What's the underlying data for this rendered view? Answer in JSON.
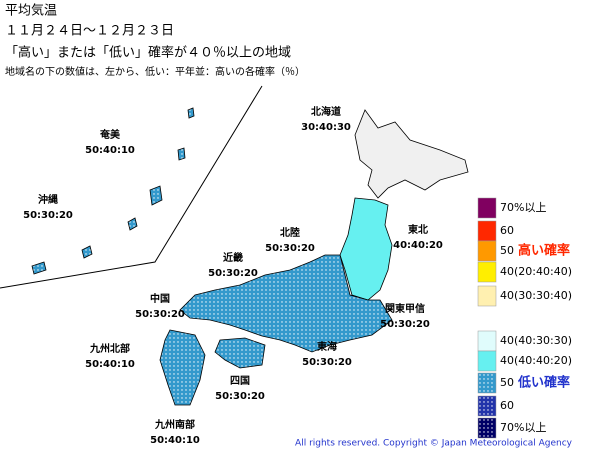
{
  "header": {
    "title": "平均気温",
    "period": "１１月２４日～１２月２３日",
    "subtitle": "「高い」または「低い」確率が４０％以上の地域",
    "note": "地域名の下の数値は、左から、低い：平年並：高いの各確率（％）"
  },
  "regions": [
    {
      "name": "北海道",
      "values": "30:40:30"
    },
    {
      "name": "東北",
      "values": "40:40:20"
    },
    {
      "name": "北陸",
      "values": "50:30:20"
    },
    {
      "name": "近畿",
      "values": "50:30:20"
    },
    {
      "name": "関東甲信",
      "values": "50:30:20"
    },
    {
      "name": "中国",
      "values": "50:30:20"
    },
    {
      "name": "東海",
      "values": "50:30:20"
    },
    {
      "name": "九州北部",
      "values": "50:40:10"
    },
    {
      "name": "四国",
      "values": "50:30:20"
    },
    {
      "name": "九州南部",
      "values": "50:40:10"
    },
    {
      "name": "奄美",
      "values": "50:40:10"
    },
    {
      "name": "沖縄",
      "values": "50:30:20"
    }
  ],
  "legend": {
    "high": [
      {
        "label": "70%以上",
        "color": "#800060"
      },
      {
        "label": "60",
        "color": "#ff2800"
      },
      {
        "label": "50",
        "color": "#ff9900",
        "note": "高い確率",
        "note_color": "#ff2800"
      },
      {
        "label": "40(20:40:40)",
        "color": "#ffee00"
      },
      {
        "label": "40(30:30:40)",
        "color": "#fff0b0"
      }
    ],
    "low": [
      {
        "label": "40(40:30:30)",
        "color": "#e0fcfc"
      },
      {
        "label": "40(40:40:20)",
        "color": "#66f0f0"
      },
      {
        "label": "50",
        "color": "#3399cc",
        "note": "低い確率",
        "note_color": "#2233cc"
      },
      {
        "label": "60",
        "color": "#2233aa"
      },
      {
        "label": "70%以上",
        "color": "#000066"
      }
    ]
  },
  "copyright": "All rights reserved. Copyright © Japan Meteorological Agency"
}
